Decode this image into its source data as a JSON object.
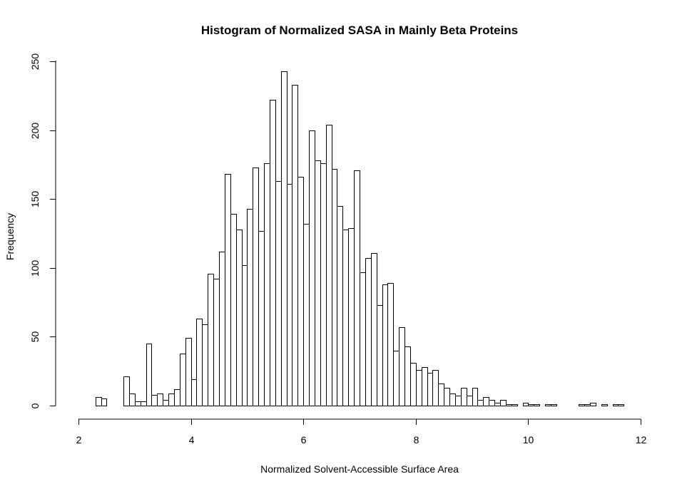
{
  "chart_data": {
    "type": "bar",
    "title": "Histogram of Normalized SASA in Mainly Beta Proteins",
    "xlabel": "Normalized Solvent-Accessible Surface Area",
    "ylabel": "Frequency",
    "xlim": [
      2,
      12
    ],
    "ylim": [
      0,
      250
    ],
    "x_ticks": [
      2,
      4,
      6,
      8,
      10,
      12
    ],
    "y_ticks": [
      0,
      50,
      100,
      150,
      200,
      250
    ],
    "bin_width": 0.1,
    "bin_start": 2.3,
    "values": [
      6,
      5,
      0,
      0,
      0,
      21,
      9,
      3,
      3,
      45,
      8,
      9,
      4,
      9,
      12,
      38,
      49,
      19,
      63,
      59,
      96,
      92,
      112,
      168,
      139,
      128,
      102,
      143,
      173,
      127,
      176,
      222,
      163,
      243,
      161,
      233,
      166,
      132,
      200,
      178,
      176,
      204,
      172,
      145,
      128,
      129,
      171,
      97,
      107,
      111,
      73,
      88,
      89,
      40,
      57,
      43,
      31,
      26,
      28,
      24,
      26,
      16,
      13,
      9,
      7,
      13,
      7,
      13,
      4,
      6,
      4,
      2,
      4,
      1,
      1,
      0,
      2,
      1,
      1,
      0,
      1,
      1,
      0,
      0,
      0,
      0,
      1,
      1,
      2,
      0,
      1,
      0,
      1,
      1
    ]
  }
}
